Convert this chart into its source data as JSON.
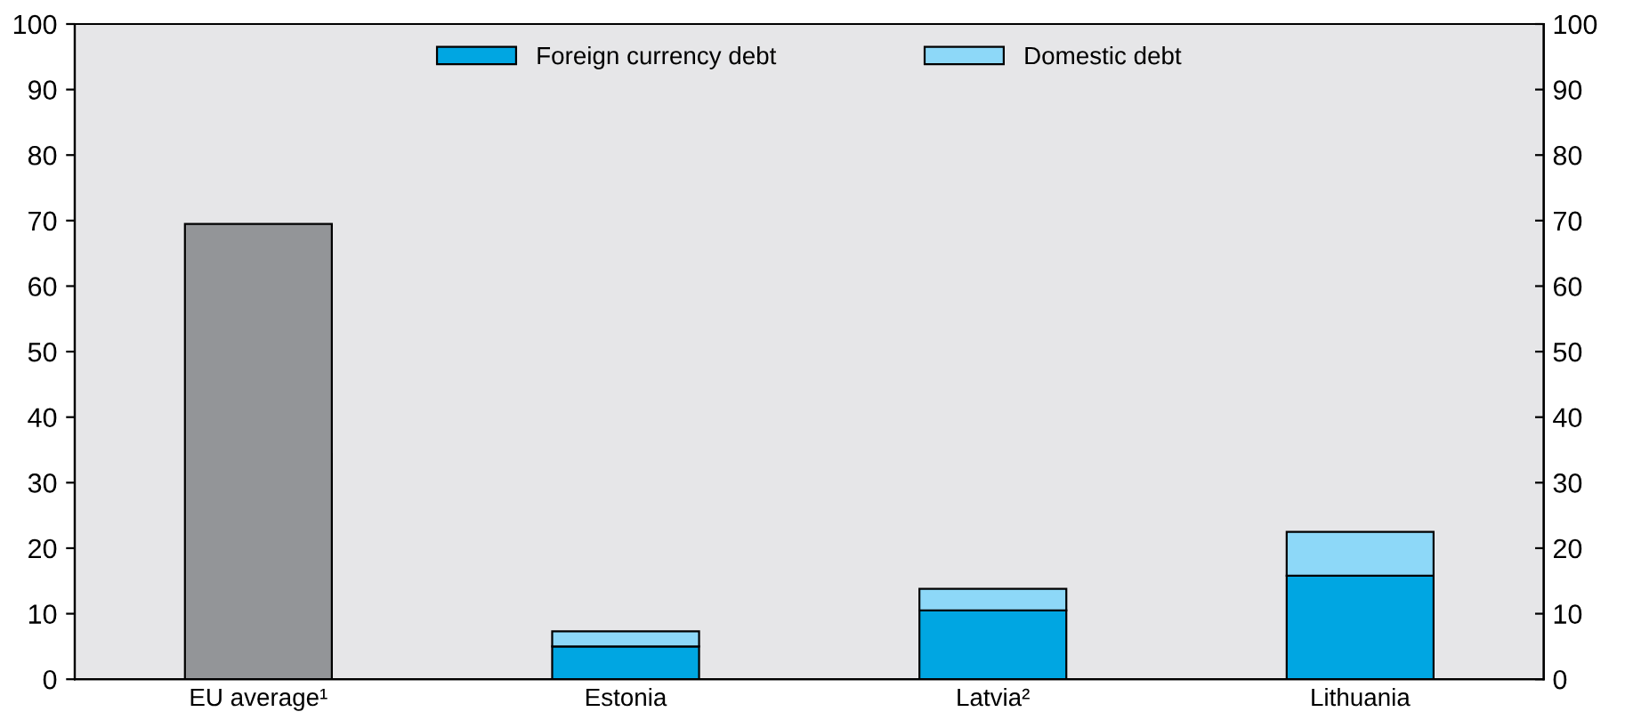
{
  "chart_data": {
    "type": "bar",
    "stacked": true,
    "categories": [
      "EU average¹",
      "Estonia",
      "Latvia²",
      "Lithuania"
    ],
    "series": [
      {
        "name": "Foreign currency debt",
        "color": "#00a6e2",
        "colors": [
          "#939598",
          "#00a6e2",
          "#00a6e2",
          "#00a6e2"
        ],
        "values": [
          69.5,
          5,
          10.5,
          15.8
        ]
      },
      {
        "name": "Domestic debt",
        "color": "#8dd8f8",
        "values": [
          null,
          2.3,
          3.3,
          6.7
        ]
      }
    ],
    "ylim": [
      0,
      100
    ],
    "yticks": [
      0,
      10,
      20,
      30,
      40,
      50,
      60,
      70,
      80,
      90,
      100
    ],
    "y2lim": [
      0,
      100
    ],
    "y2ticks": [
      0,
      10,
      20,
      30,
      40,
      50,
      60,
      70,
      80,
      90,
      100
    ],
    "grid": false,
    "legend": "top"
  }
}
